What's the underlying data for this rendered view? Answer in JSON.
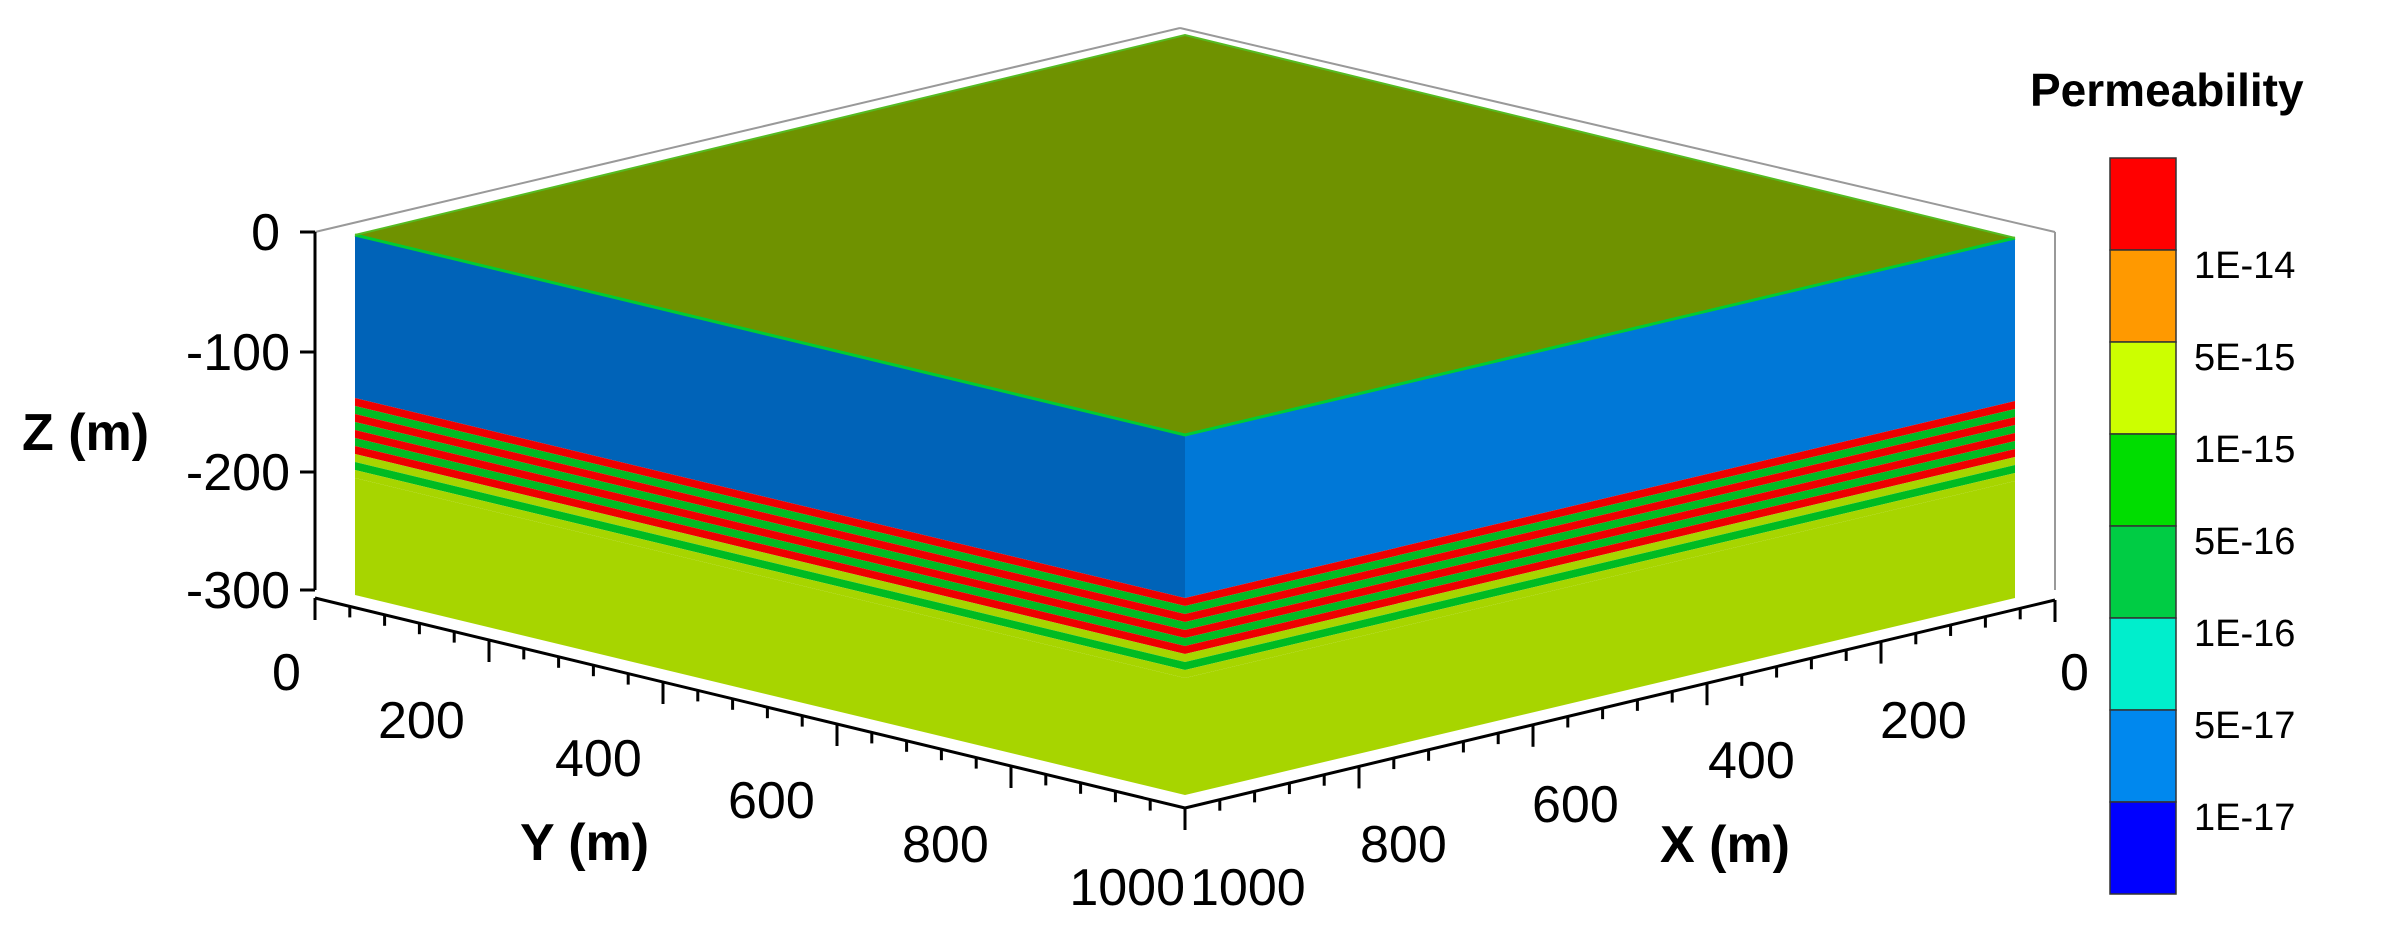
{
  "legend": {
    "title": "Permeability",
    "levels": [
      {
        "label": "",
        "color": "#ff0000"
      },
      {
        "label": "1E-14",
        "color": "#ff9900"
      },
      {
        "label": "5E-15",
        "color": "#ccff00"
      },
      {
        "label": "1E-15",
        "color": "#00dd00"
      },
      {
        "label": "5E-16",
        "color": "#00cc44"
      },
      {
        "label": "1E-16",
        "color": "#00eecc"
      },
      {
        "label": "5E-17",
        "color": "#0088ee"
      },
      {
        "label": "1E-17",
        "color": "#0000ff"
      }
    ]
  },
  "axes": {
    "z": {
      "title": "Z (m)",
      "ticks": [
        "0",
        "-100",
        "-200",
        "-300"
      ]
    },
    "y": {
      "title": "Y (m)",
      "ticks": [
        "0",
        "200",
        "400",
        "600",
        "800",
        "1000"
      ]
    },
    "x": {
      "title": "X (m)",
      "ticks": [
        "0",
        "200",
        "400",
        "600",
        "800",
        "1000"
      ]
    }
  },
  "model": {
    "top_face_color": "#6f9200",
    "upper_layer_color": "#0078d7",
    "lower_layer_color": "#a7d500",
    "stripe_red": "#ee0000",
    "stripe_green": "#00bb22"
  }
}
